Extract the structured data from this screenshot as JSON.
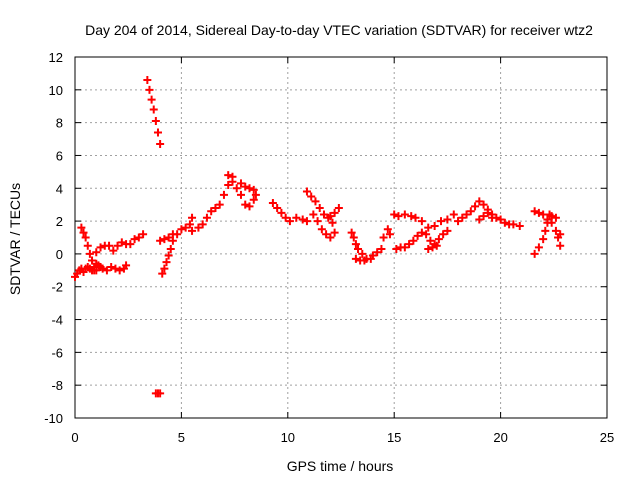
{
  "chart_data": {
    "type": "scatter",
    "title": "Day 204 of 2014, Sidereal Day-to-day VTEC variation (SDTVAR) for receiver wtz2",
    "xlabel": "GPS time / hours",
    "ylabel": "SDTVAR / TECUs",
    "xlim": [
      0,
      25
    ],
    "ylim": [
      -10,
      12
    ],
    "xticks": [
      0,
      5,
      10,
      15,
      20,
      25
    ],
    "yticks": [
      -10,
      -8,
      -6,
      -4,
      -2,
      0,
      2,
      4,
      6,
      8,
      10,
      12
    ],
    "xtick_labels": [
      "0",
      "5",
      "10",
      "15",
      "20",
      "25"
    ],
    "ytick_labels": [
      "-10",
      "-8",
      "-6",
      "-4",
      "-2",
      "0",
      "2",
      "4",
      "6",
      "8",
      "10",
      "12"
    ],
    "grid": true,
    "marker": "+",
    "color": "#ff0000",
    "series": [
      {
        "name": "SDTVAR",
        "points": [
          [
            0.0,
            -1.4
          ],
          [
            0.1,
            -1.2
          ],
          [
            0.2,
            -1.0
          ],
          [
            0.3,
            -0.9
          ],
          [
            0.3,
            1.6
          ],
          [
            0.4,
            1.3
          ],
          [
            0.5,
            1.0
          ],
          [
            0.6,
            0.5
          ],
          [
            0.7,
            0.0
          ],
          [
            0.8,
            -0.4
          ],
          [
            0.9,
            -0.8
          ],
          [
            1.0,
            -1.0
          ],
          [
            0.4,
            -1.1
          ],
          [
            0.5,
            -0.9
          ],
          [
            0.6,
            -0.8
          ],
          [
            0.7,
            -0.9
          ],
          [
            0.8,
            -1.0
          ],
          [
            0.9,
            -1.0
          ],
          [
            1.0,
            -0.6
          ],
          [
            1.1,
            -0.7
          ],
          [
            1.2,
            -0.8
          ],
          [
            1.3,
            -0.9
          ],
          [
            1.5,
            -1.0
          ],
          [
            1.7,
            -0.8
          ],
          [
            1.9,
            -0.9
          ],
          [
            2.1,
            -1.0
          ],
          [
            2.3,
            -0.9
          ],
          [
            2.4,
            -0.7
          ],
          [
            1.0,
            0.1
          ],
          [
            1.2,
            0.4
          ],
          [
            1.4,
            0.5
          ],
          [
            1.6,
            0.5
          ],
          [
            1.8,
            0.2
          ],
          [
            2.0,
            0.5
          ],
          [
            2.2,
            0.7
          ],
          [
            2.4,
            0.6
          ],
          [
            2.6,
            0.6
          ],
          [
            2.8,
            0.9
          ],
          [
            3.0,
            1.0
          ],
          [
            3.2,
            1.2
          ],
          [
            3.4,
            10.6
          ],
          [
            3.5,
            10.0
          ],
          [
            3.6,
            9.4
          ],
          [
            3.7,
            8.8
          ],
          [
            3.8,
            8.1
          ],
          [
            3.9,
            7.4
          ],
          [
            4.0,
            6.7
          ],
          [
            3.8,
            -8.5
          ],
          [
            3.9,
            -8.5
          ],
          [
            4.0,
            -8.5
          ],
          [
            4.0,
            0.8
          ],
          [
            4.2,
            0.9
          ],
          [
            4.4,
            1.0
          ],
          [
            4.6,
            1.2
          ],
          [
            4.1,
            -1.2
          ],
          [
            4.2,
            -0.9
          ],
          [
            4.3,
            -0.5
          ],
          [
            4.4,
            -0.1
          ],
          [
            4.5,
            0.3
          ],
          [
            4.6,
            0.8
          ],
          [
            4.8,
            1.2
          ],
          [
            5.0,
            1.5
          ],
          [
            5.2,
            1.6
          ],
          [
            5.4,
            1.8
          ],
          [
            5.5,
            2.2
          ],
          [
            5.5,
            1.4
          ],
          [
            5.8,
            1.6
          ],
          [
            6.0,
            1.8
          ],
          [
            6.2,
            2.2
          ],
          [
            6.4,
            2.6
          ],
          [
            6.6,
            2.8
          ],
          [
            6.8,
            3.0
          ],
          [
            7.0,
            3.6
          ],
          [
            7.2,
            4.2
          ],
          [
            7.4,
            4.7
          ],
          [
            7.2,
            4.8
          ],
          [
            7.4,
            4.4
          ],
          [
            7.6,
            4.0
          ],
          [
            7.8,
            3.6
          ],
          [
            8.0,
            3.0
          ],
          [
            8.2,
            2.9
          ],
          [
            8.4,
            3.3
          ],
          [
            7.8,
            4.3
          ],
          [
            8.0,
            4.1
          ],
          [
            8.2,
            4.0
          ],
          [
            8.4,
            3.9
          ],
          [
            8.5,
            3.6
          ],
          [
            9.3,
            3.1
          ],
          [
            9.5,
            2.8
          ],
          [
            9.7,
            2.5
          ],
          [
            9.9,
            2.2
          ],
          [
            10.1,
            2.0
          ],
          [
            10.4,
            2.2
          ],
          [
            10.7,
            2.1
          ],
          [
            10.9,
            2.0
          ],
          [
            10.9,
            3.8
          ],
          [
            11.1,
            3.5
          ],
          [
            11.3,
            3.2
          ],
          [
            11.5,
            2.8
          ],
          [
            11.7,
            2.4
          ],
          [
            11.9,
            2.2
          ],
          [
            12.1,
            1.9
          ],
          [
            11.2,
            2.4
          ],
          [
            11.4,
            2.0
          ],
          [
            11.6,
            1.5
          ],
          [
            11.8,
            1.2
          ],
          [
            12.0,
            1.0
          ],
          [
            12.2,
            1.3
          ],
          [
            12.0,
            2.3
          ],
          [
            12.2,
            2.5
          ],
          [
            12.4,
            2.8
          ],
          [
            13.0,
            1.3
          ],
          [
            13.1,
            1.0
          ],
          [
            13.2,
            0.6
          ],
          [
            13.3,
            0.3
          ],
          [
            13.5,
            0.0
          ],
          [
            13.7,
            -0.3
          ],
          [
            13.9,
            -0.3
          ],
          [
            14.0,
            -0.1
          ],
          [
            14.2,
            0.1
          ],
          [
            14.4,
            0.3
          ],
          [
            13.2,
            -0.3
          ],
          [
            13.4,
            -0.4
          ],
          [
            13.6,
            -0.4
          ],
          [
            14.5,
            1.0
          ],
          [
            14.7,
            1.5
          ],
          [
            14.8,
            1.2
          ],
          [
            15.1,
            0.3
          ],
          [
            15.3,
            0.4
          ],
          [
            15.0,
            2.4
          ],
          [
            15.2,
            2.3
          ],
          [
            15.5,
            2.4
          ],
          [
            15.8,
            2.3
          ],
          [
            16.0,
            2.2
          ],
          [
            16.3,
            2.0
          ],
          [
            16.6,
            1.6
          ],
          [
            16.9,
            1.7
          ],
          [
            17.2,
            2.0
          ],
          [
            17.5,
            2.1
          ],
          [
            17.8,
            2.4
          ],
          [
            15.5,
            0.4
          ],
          [
            15.7,
            0.6
          ],
          [
            15.9,
            0.8
          ],
          [
            16.1,
            1.1
          ],
          [
            16.3,
            1.3
          ],
          [
            16.5,
            1.2
          ],
          [
            16.7,
            0.8
          ],
          [
            16.9,
            0.6
          ],
          [
            17.1,
            0.9
          ],
          [
            17.3,
            1.2
          ],
          [
            17.5,
            1.4
          ],
          [
            16.6,
            0.3
          ],
          [
            16.8,
            0.4
          ],
          [
            17.0,
            0.5
          ],
          [
            18.0,
            2.0
          ],
          [
            18.2,
            2.2
          ],
          [
            18.4,
            2.4
          ],
          [
            18.6,
            2.6
          ],
          [
            18.8,
            2.9
          ],
          [
            19.0,
            3.2
          ],
          [
            19.2,
            3.0
          ],
          [
            19.4,
            2.7
          ],
          [
            19.6,
            2.4
          ],
          [
            19.8,
            2.2
          ],
          [
            20.0,
            2.1
          ],
          [
            20.2,
            1.9
          ],
          [
            20.4,
            1.8
          ],
          [
            20.6,
            1.8
          ],
          [
            20.9,
            1.7
          ],
          [
            19.0,
            2.1
          ],
          [
            19.2,
            2.3
          ],
          [
            19.4,
            2.5
          ],
          [
            19.6,
            2.2
          ],
          [
            21.6,
            2.6
          ],
          [
            21.8,
            2.5
          ],
          [
            22.0,
            2.4
          ],
          [
            22.2,
            2.1
          ],
          [
            22.4,
            1.9
          ],
          [
            22.6,
            1.4
          ],
          [
            22.7,
            1.0
          ],
          [
            22.8,
            0.5
          ],
          [
            21.6,
            0.0
          ],
          [
            21.8,
            0.4
          ],
          [
            22.0,
            0.9
          ],
          [
            22.1,
            1.4
          ],
          [
            22.2,
            1.9
          ],
          [
            22.3,
            2.4
          ],
          [
            22.4,
            2.3
          ],
          [
            22.6,
            2.2
          ],
          [
            22.8,
            1.2
          ]
        ]
      }
    ]
  }
}
